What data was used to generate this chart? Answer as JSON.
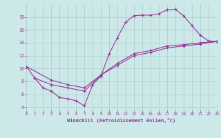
{
  "xlabel": "Windchill (Refroidissement éolien,°C)",
  "bg_color": "#cce8e8",
  "grid_color": "#aacccc",
  "line_color": "#993399",
  "xlim": [
    0,
    23
  ],
  "ylim": [
    3.5,
    20
  ],
  "xticks": [
    0,
    1,
    2,
    3,
    4,
    5,
    6,
    7,
    8,
    9,
    10,
    11,
    12,
    13,
    14,
    15,
    16,
    17,
    18,
    19,
    20,
    21,
    22,
    23
  ],
  "yticks": [
    4,
    6,
    8,
    10,
    12,
    14,
    16,
    18
  ],
  "line1_x": [
    0,
    1,
    2,
    3,
    4,
    5,
    6,
    7,
    8,
    9,
    10,
    11,
    12,
    13,
    14,
    15,
    16,
    17,
    18,
    19,
    20,
    21,
    22,
    23
  ],
  "line1_y": [
    10.3,
    8.5,
    7.0,
    6.5,
    5.5,
    5.3,
    5.0,
    4.2,
    7.5,
    8.8,
    12.3,
    14.8,
    17.2,
    18.2,
    18.3,
    18.3,
    18.5,
    19.1,
    19.2,
    18.2,
    16.7,
    15.2,
    14.3,
    14.2
  ],
  "line2_x": [
    0,
    3,
    5,
    7,
    9,
    11,
    13,
    15,
    17,
    19,
    21,
    23
  ],
  "line2_y": [
    10.3,
    8.2,
    7.5,
    7.0,
    9.0,
    10.5,
    12.0,
    12.5,
    13.2,
    13.5,
    13.8,
    14.2
  ],
  "line3_x": [
    1,
    3,
    5,
    7,
    9,
    11,
    13,
    15,
    17,
    19,
    21,
    23
  ],
  "line3_y": [
    8.5,
    7.5,
    7.0,
    6.5,
    9.0,
    10.8,
    12.3,
    12.8,
    13.5,
    13.7,
    14.0,
    14.2
  ]
}
